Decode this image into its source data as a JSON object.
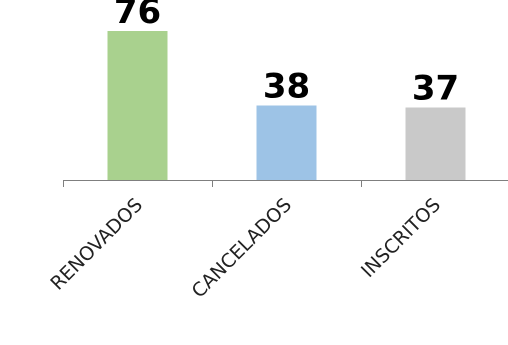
{
  "chart_data": {
    "type": "bar",
    "title": "",
    "xlabel": "",
    "ylabel": "",
    "categories": [
      "RENOVADOS",
      "CANCELADOS",
      "INSCRITOS"
    ],
    "values": [
      76,
      38,
      37
    ],
    "bar_colors": [
      "#A9D18E",
      "#9DC3E6",
      "#C9C9C9"
    ],
    "ylim": [
      0,
      76
    ],
    "grid": false,
    "legend": "none",
    "axis_color": "#7F7F7F"
  }
}
